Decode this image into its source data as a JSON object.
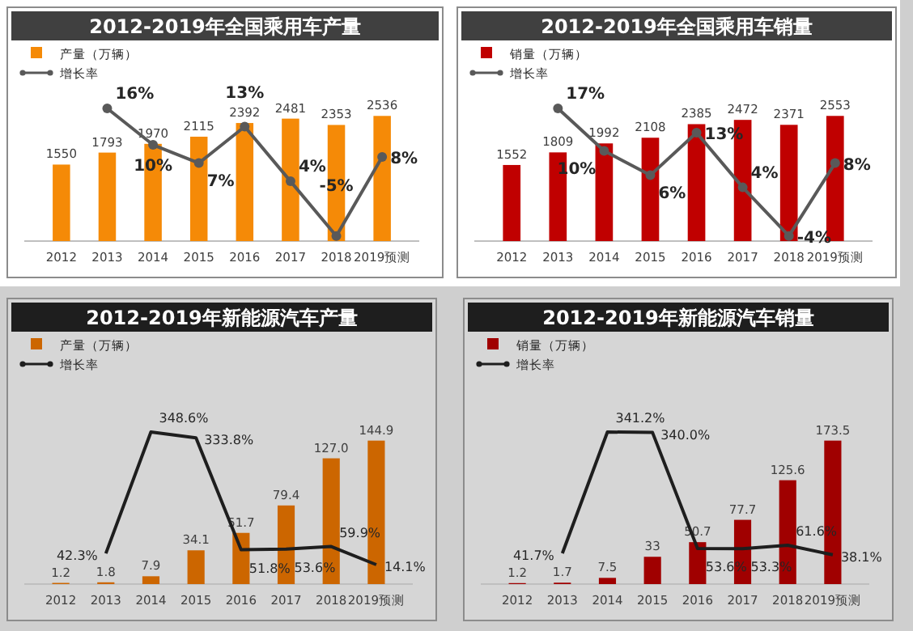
{
  "chart_data": [
    {
      "type": "bar",
      "title": "2012-2019年全国乘用车产量",
      "categories": [
        "2012",
        "2013",
        "2014",
        "2015",
        "2016",
        "2017",
        "2018",
        "2019预测"
      ],
      "legend": "top left",
      "marker": "circle",
      "series": [
        {
          "name": "产量（万辆）",
          "color": "#f58a07",
          "values": [
            1550,
            1793,
            1970,
            2115,
            2392,
            2481,
            2353,
            2536
          ],
          "value_labels": [
            "1550",
            "1793",
            "1970",
            "2115",
            "2392",
            "2481",
            "2353",
            "2536"
          ]
        },
        {
          "name": "增长率",
          "type": "line",
          "axis": "y2",
          "color": "#595959",
          "values": [
            null,
            16,
            10,
            7,
            13,
            4,
            -5,
            8
          ],
          "value_labels": [
            null,
            "16%",
            "10%",
            "7%",
            "13%",
            "4%",
            "-5%",
            "8%"
          ]
        }
      ]
    },
    {
      "type": "bar",
      "title": "2012-2019年全国乘用车销量",
      "categories": [
        "2012",
        "2013",
        "2014",
        "2015",
        "2016",
        "2017",
        "2018",
        "2019预测"
      ],
      "legend": "top left",
      "marker": "circle",
      "series": [
        {
          "name": "销量（万辆）",
          "color": "#c00000",
          "values": [
            1552,
            1809,
            1992,
            2108,
            2385,
            2472,
            2371,
            2553
          ],
          "value_labels": [
            "1552",
            "1809",
            "1992",
            "2108",
            "2385",
            "2472",
            "2371",
            "2553"
          ]
        },
        {
          "name": "增长率",
          "type": "line",
          "axis": "y2",
          "color": "#595959",
          "values": [
            null,
            17,
            10,
            6,
            13,
            4,
            -4,
            8
          ],
          "value_labels": [
            null,
            "17%",
            "10%",
            "6%",
            "13%",
            "4%",
            "-4%",
            "8%"
          ]
        }
      ]
    },
    {
      "type": "bar",
      "title": "2012-2019年新能源汽车产量",
      "categories": [
        "2012",
        "2013",
        "2014",
        "2015",
        "2016",
        "2017",
        "2018",
        "2019预测"
      ],
      "legend": "top left",
      "marker": "none",
      "series": [
        {
          "name": "产量（万辆）",
          "color": "#cc6600",
          "values": [
            1.2,
            1.8,
            7.9,
            34.1,
            51.7,
            79.4,
            127.0,
            144.9
          ],
          "value_labels": [
            "1.2",
            "1.8",
            "7.9",
            "34.1",
            "51.7",
            "79.4",
            "127.0",
            "144.9"
          ]
        },
        {
          "name": "增长率",
          "type": "line",
          "axis": "y2",
          "color": "#1e1e1e",
          "values": [
            null,
            42.3,
            348.6,
            333.8,
            51.8,
            53.6,
            59.9,
            14.1
          ],
          "value_labels": [
            null,
            "42.3%",
            "348.6%",
            "333.8%",
            "51.8%",
            "53.6%",
            "59.9%",
            "14.1%"
          ]
        }
      ]
    },
    {
      "type": "bar",
      "title": "2012-2019年新能源汽车销量",
      "categories": [
        "2012",
        "2013",
        "2014",
        "2015",
        "2016",
        "2017",
        "2018",
        "2019预测"
      ],
      "legend": "top left",
      "marker": "none",
      "series": [
        {
          "name": "销量（万辆）",
          "color": "#a00000",
          "values": [
            1.2,
            1.7,
            7.5,
            33,
            50.7,
            77.7,
            125.6,
            173.5
          ],
          "value_labels": [
            "1.2",
            "1.7",
            "7.5",
            "33",
            "50.7",
            "77.7",
            "125.6",
            "173.5"
          ]
        },
        {
          "name": "增长率",
          "type": "line",
          "axis": "y2",
          "color": "#1e1e1e",
          "values": [
            null,
            41.7,
            341.2,
            340.0,
            53.6,
            53.3,
            61.6,
            38.1
          ],
          "value_labels": [
            null,
            "41.7%",
            "341.2%",
            "340.0%",
            "53.6%",
            "53.3%",
            "61.6%",
            "38.1%"
          ]
        }
      ]
    }
  ]
}
